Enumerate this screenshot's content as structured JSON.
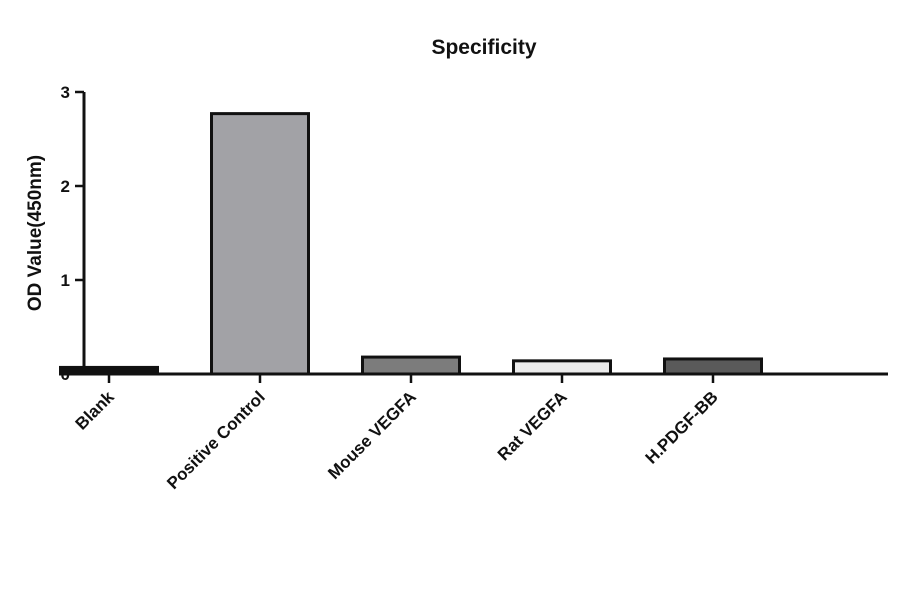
{
  "chart_data": {
    "type": "bar",
    "title": "Specificity",
    "xlabel": "",
    "ylabel": "OD Value(450nm)",
    "ylim": [
      0,
      3
    ],
    "yticks": [
      "0",
      "1",
      "2",
      "3"
    ],
    "categories": [
      "Blank",
      "Positive Control",
      "Mouse VEGFA",
      "Rat VEGFA",
      "H.PDGF-BB"
    ],
    "values": [
      0.07,
      2.77,
      0.18,
      0.14,
      0.16
    ],
    "bar_colors": [
      "#111111",
      "#a2a2a6",
      "#7c7c7c",
      "#ececec",
      "#5a5a5a"
    ],
    "grid": false,
    "legend": "none"
  }
}
